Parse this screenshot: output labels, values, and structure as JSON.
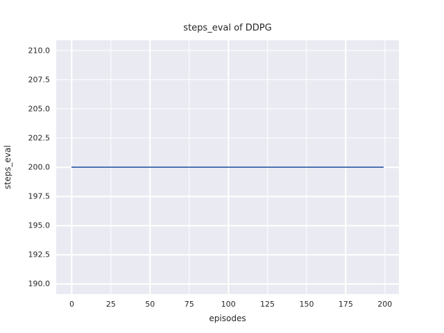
{
  "chart_data": {
    "type": "line",
    "title": "steps_eval of DDPG",
    "xlabel": "episodes",
    "ylabel": "steps_eval",
    "x": [
      0,
      199
    ],
    "series": [
      {
        "name": "steps_eval",
        "y": [
          200,
          200
        ],
        "color": "#4c72b0"
      }
    ],
    "xticks": {
      "values": [
        0,
        25,
        50,
        75,
        100,
        125,
        150,
        175,
        200
      ],
      "labels": [
        "0",
        "25",
        "50",
        "75",
        "100",
        "125",
        "150",
        "175",
        "200"
      ]
    },
    "yticks": {
      "values": [
        190.0,
        192.5,
        195.0,
        197.5,
        200.0,
        202.5,
        205.0,
        207.5,
        210.0
      ],
      "labels": [
        "190.0",
        "192.5",
        "195.0",
        "197.5",
        "200.0",
        "202.5",
        "205.0",
        "207.5",
        "210.0"
      ]
    },
    "xlim": [
      -9.95,
      208.95
    ],
    "ylim": [
      189.11,
      210.89
    ],
    "grid": true,
    "legend": "none",
    "styles": {
      "figure_background": "#ffffff",
      "plot_background": "#eaeaf2",
      "grid_color": "#ffffff",
      "text_color": "#262626",
      "line_color": "#4c72b0"
    }
  }
}
